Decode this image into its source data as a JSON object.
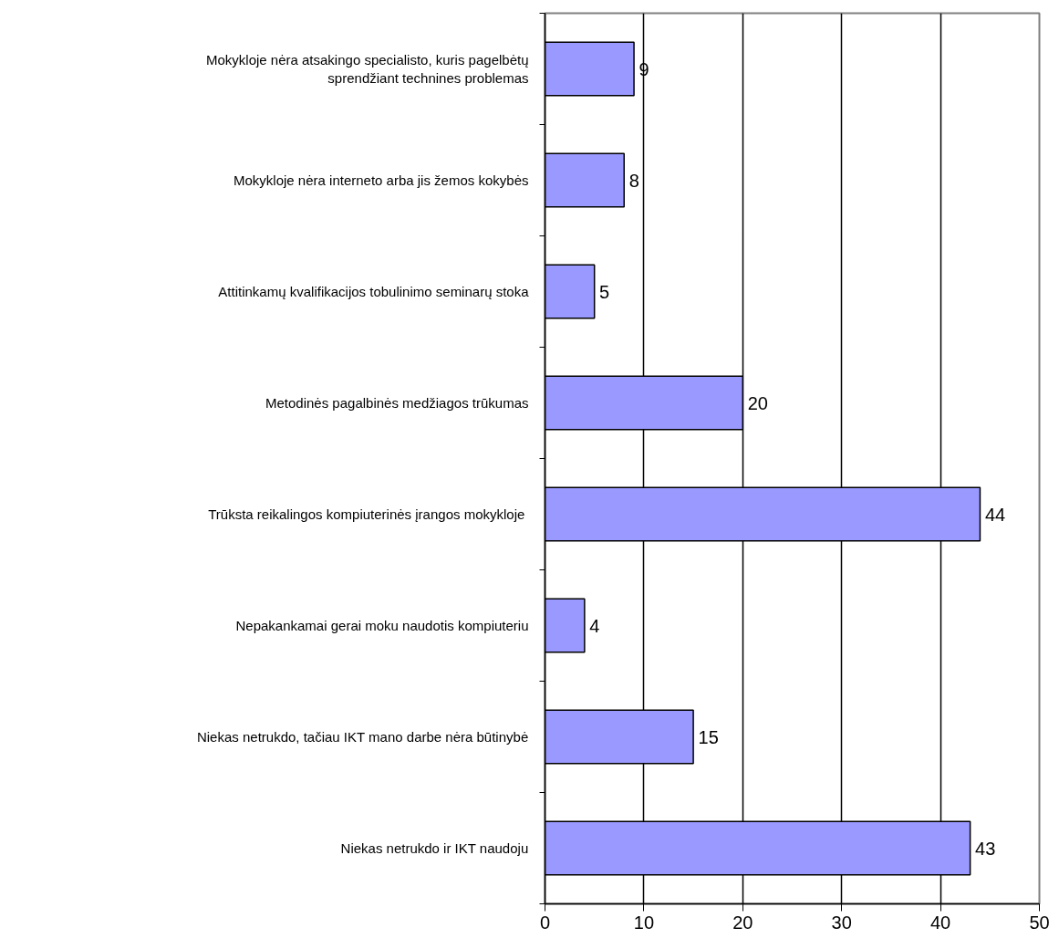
{
  "chart_data": {
    "type": "bar",
    "orientation": "horizontal",
    "categories": [
      "Mokykloje nėra atsakingo specialisto, kuris pagelbėtų\nsprendžiant technines problemas",
      "Mokykloje nėra interneto arba jis žemos kokybės",
      "Attitinkamų kvalifikacijos tobulinimo seminarų stoka",
      "Metodinės pagalbinės medžiagos trūkumas",
      "Trūksta reikalingos kompiuterinės įrangos  mokykloje",
      "Nepakankamai gerai moku naudotis kompiuteriu",
      "Niekas netrukdo, tačiau IKT mano darbe nėra būtinybė",
      "Niekas netrukdo ir IKT naudoju"
    ],
    "values": [
      9,
      8,
      5,
      20,
      44,
      4,
      15,
      43
    ],
    "color": "#9999ff",
    "xlim": [
      0,
      50
    ],
    "xticks": [
      0,
      10,
      20,
      30,
      40,
      50
    ],
    "grid": "x",
    "data_labels": true
  }
}
